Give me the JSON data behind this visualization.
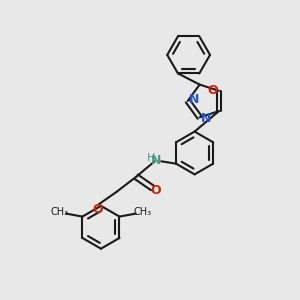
{
  "bg_color": "#e8e8e8",
  "bond_color": "#1a1a1a",
  "bond_width": 1.5,
  "figsize": [
    3.0,
    3.0
  ],
  "dpi": 100,
  "xlim": [
    0,
    10
  ],
  "ylim": [
    0,
    10
  ],
  "ring_r": 0.72,
  "dbo": 0.1,
  "N_color": "#2255cc",
  "O_color": "#cc2200",
  "NH_color": "#4a9a8a"
}
